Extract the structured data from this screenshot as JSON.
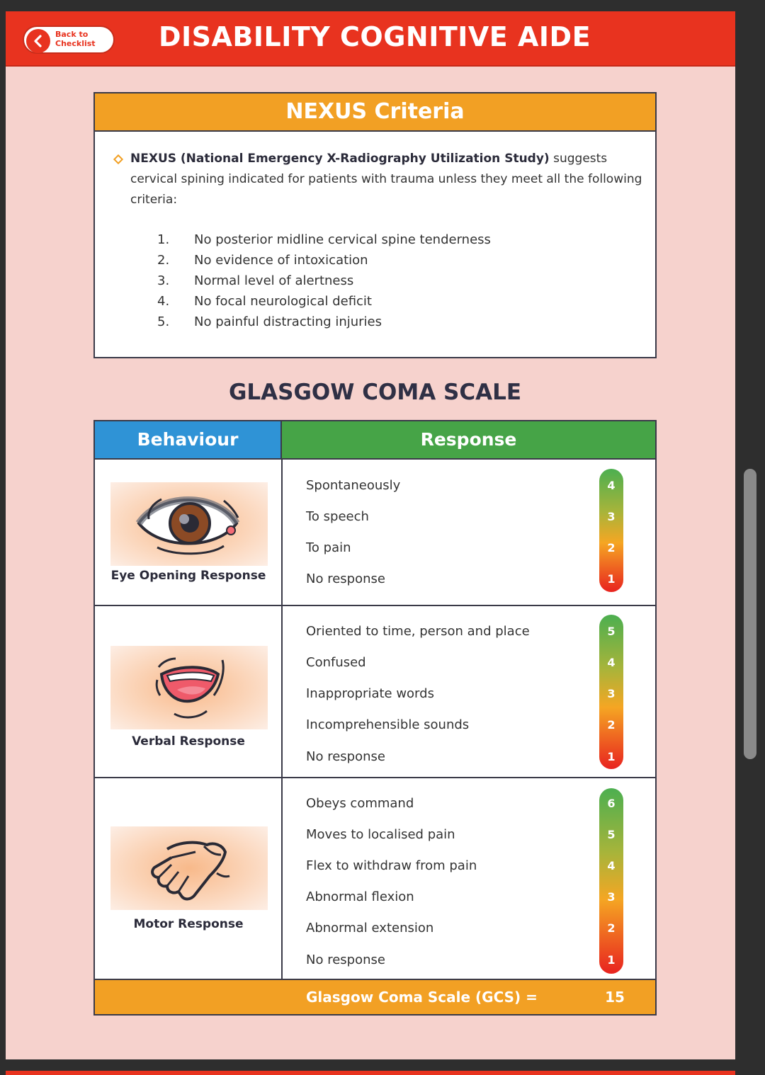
{
  "header": {
    "title": "DISABILITY COGNITIVE AIDE",
    "back_label": "Back to Checklist"
  },
  "nexus": {
    "title": "NEXUS Criteria",
    "intro_bold": "NEXUS (National Emergency X-Radiography Utilization Study)",
    "intro_rest": " suggests cervical spining indicated for patients with trauma unless they meet all the following criteria:",
    "criteria": [
      {
        "num": "1.",
        "text": "No posterior midline cervical spine tenderness"
      },
      {
        "num": "2.",
        "text": "No evidence of intoxication"
      },
      {
        "num": "3.",
        "text": "Normal level of alertness"
      },
      {
        "num": "4.",
        "text": "No focal neurological deficit"
      },
      {
        "num": "5.",
        "text": "No painful distracting injuries"
      }
    ]
  },
  "gcs": {
    "title": "GLASGOW COMA SCALE",
    "col_behaviour": "Behaviour",
    "col_response": "Response",
    "sections": [
      {
        "label": "Eye Opening Response",
        "icon": "eye-icon",
        "responses": [
          {
            "text": "Spontaneously",
            "score": "4"
          },
          {
            "text": "To speech",
            "score": "3"
          },
          {
            "text": "To pain",
            "score": "2"
          },
          {
            "text": "No response",
            "score": "1"
          }
        ]
      },
      {
        "label": "Verbal Response",
        "icon": "mouth-icon",
        "responses": [
          {
            "text": "Oriented to time, person and place",
            "score": "5"
          },
          {
            "text": "Confused",
            "score": "4"
          },
          {
            "text": "Inappropriate words",
            "score": "3"
          },
          {
            "text": "Incomprehensible sounds",
            "score": "2"
          },
          {
            "text": "No response",
            "score": "1"
          }
        ]
      },
      {
        "label": "Motor Response",
        "icon": "hand-icon",
        "responses": [
          {
            "text": "Obeys command",
            "score": "6"
          },
          {
            "text": "Moves to localised pain",
            "score": "5"
          },
          {
            "text": "Flex to withdraw from pain",
            "score": "4"
          },
          {
            "text": "Abnormal flexion",
            "score": "3"
          },
          {
            "text": "Abnormal extension",
            "score": "2"
          },
          {
            "text": "No response",
            "score": "1"
          }
        ]
      }
    ],
    "total_label": "Glasgow Coma Scale (GCS) =",
    "total_value": "15"
  },
  "colors": {
    "header_red": "#e8331f",
    "accent_orange": "#f2a024",
    "behaviour_blue": "#2f93d6",
    "response_green": "#46a447",
    "page_pink": "#f6d2cd",
    "score_top_green": "#4caf50",
    "score_mid_orange": "#f5a623",
    "score_bottom_red": "#e8231f"
  }
}
